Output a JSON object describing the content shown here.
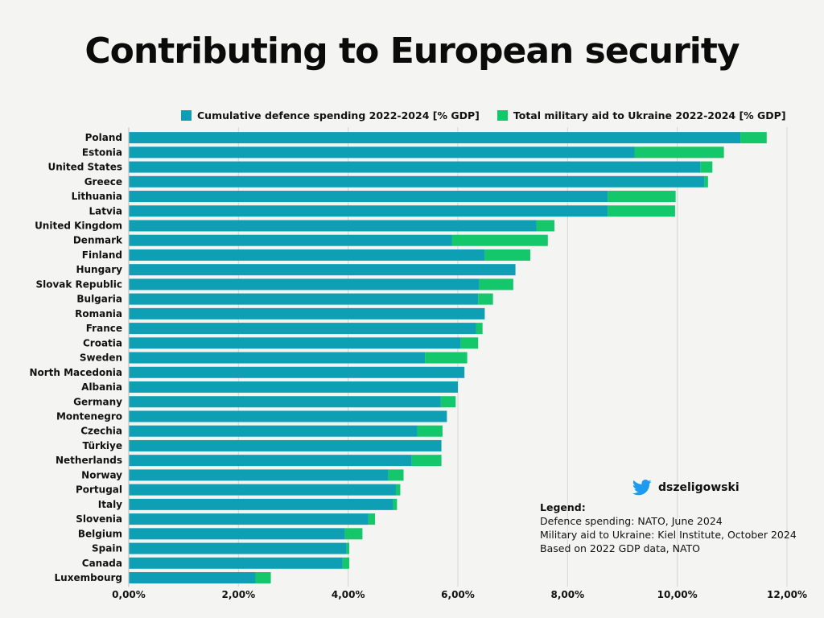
{
  "title": "Contributing to European security",
  "legend": [
    {
      "label": "Cumulative defence spending 2022-2024 [% GDP]",
      "color": "#0f9fb5"
    },
    {
      "label": "Total military aid to Ukraine 2022-2024 [% GDP]",
      "color": "#15c76b"
    }
  ],
  "credit": {
    "handle": "dszeligowski",
    "icon": "twitter-bird-icon"
  },
  "sources": {
    "heading": "Legend:",
    "lines": [
      "Defence spending: NATO, June 2024",
      "Military aid to Ukraine: Kiel Institute, October 2024",
      "Based on 2022 GDP data, NATO"
    ]
  },
  "chart_data": {
    "type": "bar",
    "orientation": "horizontal",
    "stacked": true,
    "categories": [
      "Poland",
      "Estonia",
      "United States",
      "Greece",
      "Lithuania",
      "Latvia",
      "United Kingdom",
      "Denmark",
      "Finland",
      "Hungary",
      "Slovak Republic",
      "Bulgaria",
      "Romania",
      "France",
      "Croatia",
      "Sweden",
      "North Macedonia",
      "Albania",
      "Germany",
      "Montenegro",
      "Czechia",
      "Türkiye",
      "Netherlands",
      "Norway",
      "Portugal",
      "Italy",
      "Slovenia",
      "Belgium",
      "Spain",
      "Canada",
      "Luxembourg"
    ],
    "series": [
      {
        "name": "Cumulative defence spending 2022-2024 [% GDP]",
        "color": "#0f9fb5",
        "values": [
          11.15,
          9.22,
          10.42,
          10.49,
          8.73,
          8.73,
          7.43,
          5.89,
          6.49,
          7.05,
          6.39,
          6.37,
          6.49,
          6.33,
          6.05,
          5.4,
          6.12,
          6.0,
          5.69,
          5.8,
          5.26,
          5.7,
          5.16,
          4.73,
          4.87,
          4.82,
          4.37,
          3.94,
          3.97,
          3.9,
          2.31
        ]
      },
      {
        "name": "Total military aid to Ukraine 2022-2024 [% GDP]",
        "color": "#15c76b",
        "values": [
          0.48,
          1.63,
          0.22,
          0.07,
          1.24,
          1.23,
          0.33,
          1.75,
          0.83,
          0.0,
          0.62,
          0.27,
          0.0,
          0.12,
          0.32,
          0.77,
          0.0,
          0.0,
          0.27,
          0.0,
          0.46,
          0.0,
          0.54,
          0.28,
          0.08,
          0.07,
          0.12,
          0.32,
          0.05,
          0.12,
          0.28
        ]
      }
    ],
    "xticks": [
      "0,00%",
      "2,00%",
      "4,00%",
      "6,00%",
      "8,00%",
      "10,00%",
      "12,00%"
    ],
    "xlim": [
      0,
      12
    ],
    "grid": true,
    "legend_position": "top"
  }
}
